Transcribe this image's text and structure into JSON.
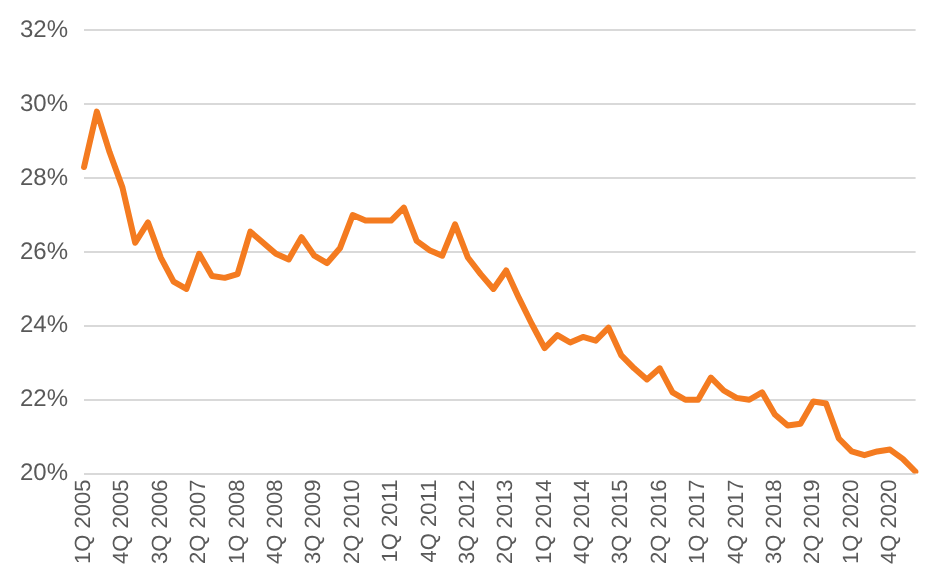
{
  "chart_data": {
    "type": "line",
    "categories": [
      "1Q 2005",
      null,
      null,
      "4Q 2005",
      null,
      null,
      "3Q 2006",
      null,
      null,
      "2Q 2007",
      null,
      null,
      "1Q 2008",
      null,
      null,
      "4Q 2008",
      null,
      null,
      "3Q 2009",
      null,
      null,
      "2Q 2010",
      null,
      null,
      "1Q 2011",
      null,
      null,
      "4Q 2011",
      null,
      null,
      "3Q 2012",
      null,
      null,
      "2Q 2013",
      null,
      null,
      "1Q 2014",
      null,
      null,
      "4Q 2014",
      null,
      null,
      "3Q 2015",
      null,
      null,
      "2Q 2016",
      null,
      null,
      "1Q 2017",
      null,
      null,
      "4Q 2017",
      null,
      null,
      "3Q 2018",
      null,
      null,
      "2Q 2019",
      null,
      null,
      "1Q 2020",
      null,
      null,
      "4Q 2020",
      null,
      null
    ],
    "series": [
      {
        "color": "#f47b20",
        "values": [
          28.3,
          29.8,
          28.7,
          27.75,
          26.25,
          26.8,
          25.85,
          25.2,
          25.0,
          25.95,
          25.35,
          25.3,
          25.4,
          26.55,
          26.25,
          25.95,
          25.8,
          26.4,
          25.9,
          25.7,
          26.1,
          27.0,
          26.85,
          26.85,
          26.85,
          27.2,
          26.3,
          26.05,
          25.9,
          26.75,
          25.85,
          25.4,
          25.0,
          25.5,
          24.75,
          24.05,
          23.4,
          23.75,
          23.55,
          23.7,
          23.6,
          23.95,
          23.2,
          22.85,
          22.55,
          22.85,
          22.2,
          22.0,
          22.0,
          22.6,
          22.25,
          22.05,
          22.0,
          22.2,
          21.6,
          21.3,
          21.35,
          21.95,
          21.9,
          20.95,
          20.6,
          20.5,
          20.6,
          20.65,
          20.4,
          20.05
        ]
      }
    ],
    "ylim": [
      20,
      32
    ],
    "yticks": [
      {
        "value": 20,
        "label": "20%"
      },
      {
        "value": 22,
        "label": "22%"
      },
      {
        "value": 24,
        "label": "24%"
      },
      {
        "value": 26,
        "label": "26%"
      },
      {
        "value": 28,
        "label": "28%"
      },
      {
        "value": 30,
        "label": "30%"
      },
      {
        "value": 32,
        "label": "32%"
      }
    ],
    "grid": "y",
    "legend": false,
    "marker": "none",
    "line_style": "solid"
  }
}
